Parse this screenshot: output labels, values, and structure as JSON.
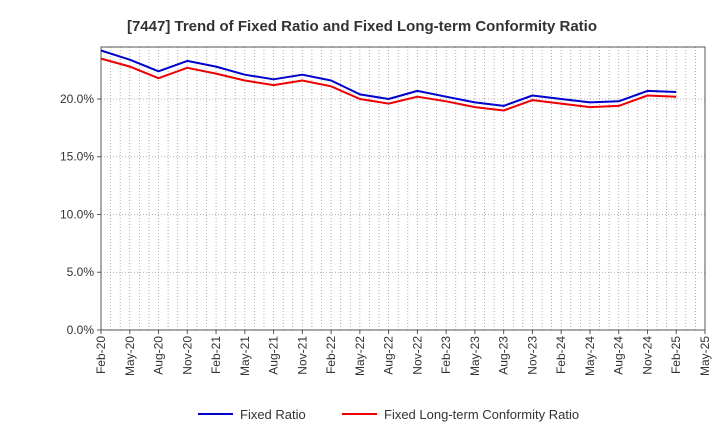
{
  "chart_data": {
    "type": "line",
    "title": "[7447]  Trend of Fixed Ratio and Fixed Long-term Conformity Ratio",
    "xlabel": "",
    "ylabel": "",
    "x_ticks": [
      "Feb-20",
      "May-20",
      "Aug-20",
      "Nov-20",
      "Feb-21",
      "May-21",
      "Aug-21",
      "Nov-21",
      "Feb-22",
      "May-22",
      "Aug-22",
      "Nov-22",
      "Feb-23",
      "May-23",
      "Aug-23",
      "Nov-23",
      "Feb-24",
      "May-24",
      "Aug-24",
      "Nov-24",
      "Feb-25",
      "May-25"
    ],
    "x": [
      "Feb-20",
      "May-20",
      "Aug-20",
      "Nov-20",
      "Feb-21",
      "May-21",
      "Aug-21",
      "Nov-21",
      "Feb-22",
      "May-22",
      "Aug-22",
      "Nov-22",
      "Feb-23",
      "May-23",
      "Aug-23",
      "Nov-23",
      "Feb-24",
      "May-24",
      "Aug-24",
      "Nov-24",
      "Feb-25"
    ],
    "y_ticks": [
      "0.0%",
      "5.0%",
      "10.0%",
      "15.0%",
      "20.0%"
    ],
    "ylim": [
      0,
      24.5
    ],
    "grid": true,
    "legend_position": "bottom",
    "series": [
      {
        "name": "Fixed Ratio",
        "color": "#0000cc",
        "values": [
          24.2,
          23.4,
          22.4,
          23.3,
          22.8,
          22.1,
          21.7,
          22.1,
          21.6,
          20.4,
          20.0,
          20.7,
          20.2,
          19.7,
          19.4,
          20.3,
          20.0,
          19.7,
          19.8,
          20.7,
          20.6
        ]
      },
      {
        "name": "Fixed Long-term Conformity Ratio",
        "color": "#ee0000",
        "values": [
          23.5,
          22.8,
          21.8,
          22.7,
          22.2,
          21.6,
          21.2,
          21.6,
          21.1,
          20.0,
          19.6,
          20.2,
          19.8,
          19.3,
          19.0,
          19.9,
          19.6,
          19.3,
          19.4,
          20.3,
          20.2
        ]
      }
    ]
  }
}
